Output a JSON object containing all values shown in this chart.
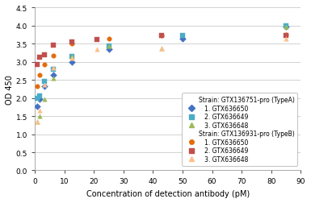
{
  "xlabel": "Concentration of detection antibody (pM)",
  "ylabel": "OD 450",
  "xlim": [
    0,
    90
  ],
  "ylim": [
    0,
    4.5
  ],
  "xticks": [
    0,
    10,
    20,
    30,
    40,
    50,
    60,
    70,
    80,
    90
  ],
  "yticks": [
    0,
    0.5,
    1.0,
    1.5,
    2.0,
    2.5,
    3.0,
    3.5,
    4.0,
    4.5
  ],
  "strain_a_label": "Strain: GTX136751-pro (TypeA)",
  "strain_b_label": "Strain: GTX136931-pro (TypeB)",
  "series": [
    {
      "label": "1. GTX636650",
      "group": "A",
      "color": "#4472C4",
      "line_color": "#4472C4",
      "marker": "D",
      "x_data": [
        0.78,
        1.56,
        3.13,
        6.25,
        12.5,
        25,
        50,
        85
      ],
      "y_data": [
        1.78,
        1.97,
        2.33,
        2.65,
        3.0,
        3.35,
        3.65,
        3.98
      ]
    },
    {
      "label": "2. GTX636649",
      "group": "A",
      "color": "#4BACC6",
      "line_color": "#4BACC6",
      "marker": "s",
      "x_data": [
        0.78,
        1.56,
        3.13,
        6.25,
        12.5,
        25,
        50,
        85
      ],
      "y_data": [
        2.0,
        2.05,
        2.45,
        2.8,
        3.15,
        3.45,
        3.72,
        4.0
      ]
    },
    {
      "label": "3. GTX636648",
      "group": "A",
      "color": "#9BBB59",
      "line_color": "#9BBB59",
      "marker": "^",
      "x_data": [
        0.78,
        1.56,
        3.13,
        6.25,
        12.5,
        25,
        43,
        85
      ],
      "y_data": [
        1.35,
        1.5,
        1.98,
        2.55,
        3.15,
        3.45,
        3.37,
        3.97
      ]
    },
    {
      "label": "1. GTX636650",
      "group": "B",
      "color": "#E36C0A",
      "line_color": "#E36C0A",
      "marker": "o",
      "x_data": [
        0.78,
        1.56,
        3.13,
        6.25,
        12.5,
        25,
        43,
        85
      ],
      "y_data": [
        2.32,
        2.65,
        2.93,
        3.18,
        3.5,
        3.65,
        3.73,
        3.75
      ]
    },
    {
      "label": "2. GTX636649",
      "group": "B",
      "color": "#C0504D",
      "line_color": "#C0504D",
      "marker": "s",
      "x_data": [
        0.78,
        1.56,
        3.13,
        6.25,
        12.5,
        21,
        43,
        85
      ],
      "y_data": [
        2.93,
        3.12,
        3.2,
        3.47,
        3.55,
        3.63,
        3.72,
        3.72
      ]
    },
    {
      "label": "3. GTX636648",
      "group": "B",
      "color": "#FAC090",
      "line_color": "#FAC090",
      "marker": "^",
      "x_data": [
        0.78,
        1.56,
        3.13,
        6.25,
        12.5,
        21,
        43,
        85
      ],
      "y_data": [
        1.35,
        1.65,
        2.38,
        2.83,
        3.1,
        3.35,
        3.37,
        3.65
      ]
    }
  ],
  "bg_color": "#ffffff",
  "grid_color": "#c0c0c0",
  "legend_fontsize": 5.5,
  "axis_fontsize": 7,
  "tick_fontsize": 6.5
}
